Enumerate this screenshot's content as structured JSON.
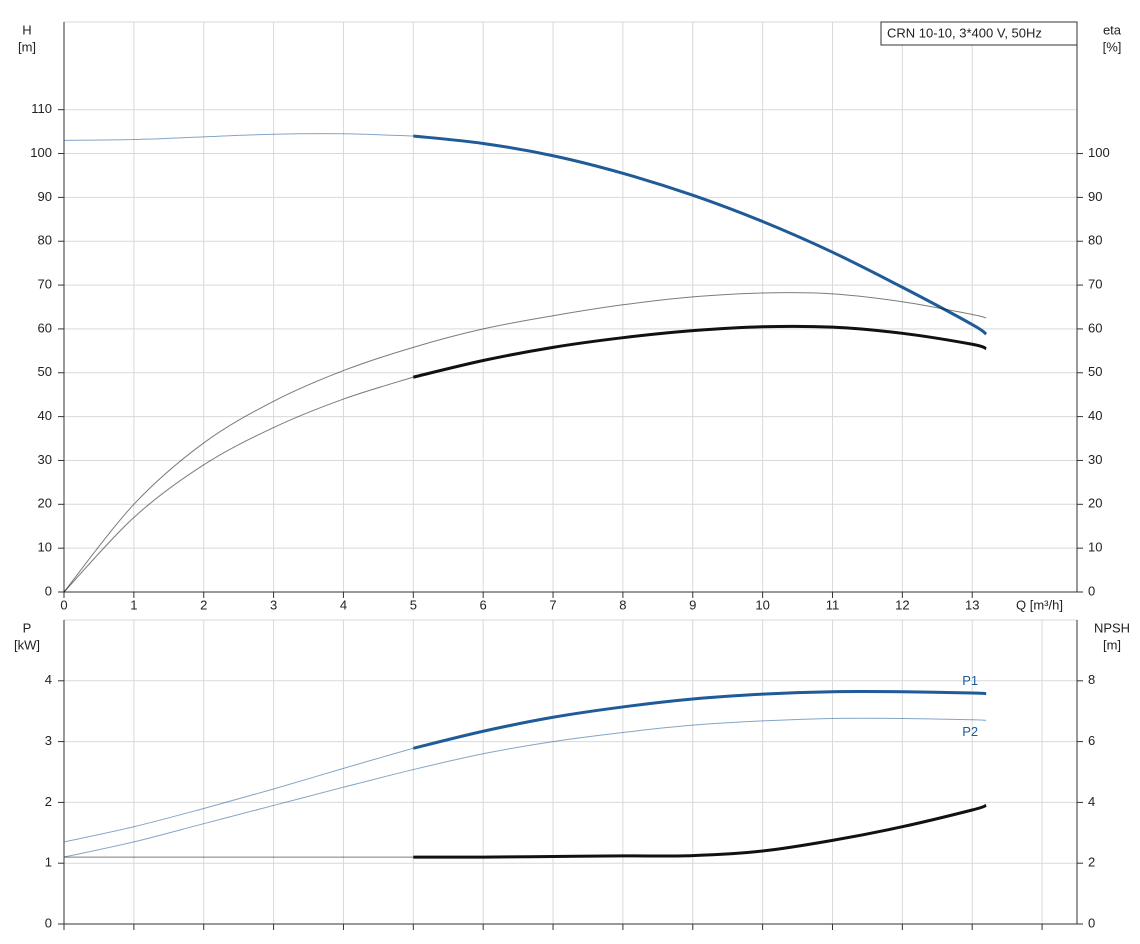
{
  "chart_data": [
    {
      "type": "line",
      "legend_text": "CRN 10-10, 3*400 V, 50Hz",
      "ylabel": "H",
      "yunit": "[m]",
      "y2label": "eta",
      "y2unit": "[%]",
      "xlabel": "Q [m³/h]",
      "x": [
        0,
        1,
        2,
        3,
        4,
        5,
        6,
        7,
        8,
        9,
        10,
        11,
        12,
        13,
        13.2
      ],
      "xlim": [
        0,
        14.5
      ],
      "xticks": [
        0,
        1,
        2,
        3,
        4,
        5,
        6,
        7,
        8,
        9,
        10,
        11,
        12,
        13
      ],
      "ylim": [
        0,
        130
      ],
      "yticks": [
        0,
        10,
        20,
        30,
        40,
        50,
        60,
        70,
        80,
        90,
        100,
        110
      ],
      "y2lim": [
        0,
        130
      ],
      "y2ticks": [
        0,
        10,
        20,
        30,
        40,
        50,
        60,
        70,
        80,
        90,
        100
      ],
      "grid": true,
      "series": [
        {
          "color": "#1f5b99",
          "bold_from": 5,
          "values": [
            103,
            103.2,
            103.8,
            104.4,
            104.5,
            104,
            102.3,
            99.5,
            95.5,
            90.5,
            84.5,
            77.5,
            69.5,
            61,
            58.8
          ]
        },
        {
          "color": "#111111",
          "bold_from": 5,
          "axis": "y2",
          "values": [
            0,
            17,
            29,
            37.5,
            44,
            49,
            52.8,
            55.8,
            58,
            59.6,
            60.5,
            60.4,
            59,
            56.5,
            55.5
          ]
        },
        {
          "color": "#111111",
          "bold_from": 13.2,
          "axis": "y2",
          "values": [
            0,
            20,
            34,
            43.5,
            50.5,
            55.8,
            60,
            63,
            65.5,
            67.3,
            68.2,
            68,
            66.2,
            63.3,
            62.5
          ]
        }
      ]
    },
    {
      "type": "line",
      "ylabel": "P",
      "yunit": "[kW]",
      "y2label": "NPSH",
      "y2unit": "[m]",
      "x": [
        0,
        1,
        2,
        3,
        4,
        5,
        6,
        7,
        8,
        9,
        10,
        11,
        12,
        13,
        13.2
      ],
      "xlim": [
        0,
        14.5
      ],
      "xgrid": [
        0,
        1,
        2,
        3,
        4,
        5,
        6,
        7,
        8,
        9,
        10,
        11,
        12,
        13,
        14
      ],
      "ylim": [
        0,
        5
      ],
      "yticks": [
        0,
        1,
        2,
        3,
        4
      ],
      "y2lim": [
        0,
        10
      ],
      "y2ticks": [
        0,
        2,
        4,
        6,
        8
      ],
      "grid": true,
      "series": [
        {
          "name": "P1",
          "color": "#1f5b99",
          "bold_from": 5,
          "values": [
            1.35,
            1.6,
            1.9,
            2.22,
            2.56,
            2.89,
            3.17,
            3.4,
            3.57,
            3.7,
            3.78,
            3.82,
            3.82,
            3.8,
            3.79
          ]
        },
        {
          "name": "P2",
          "color": "#1f5b99",
          "bold_from": 13.2,
          "values": [
            1.1,
            1.35,
            1.65,
            1.95,
            2.25,
            2.54,
            2.8,
            3.0,
            3.15,
            3.27,
            3.34,
            3.38,
            3.38,
            3.36,
            3.35
          ]
        },
        {
          "color": "#111111",
          "bold_from": 5,
          "axis": "y2",
          "values": [
            2.2,
            2.2,
            2.2,
            2.2,
            2.2,
            2.2,
            2.2,
            2.22,
            2.24,
            2.25,
            2.4,
            2.75,
            3.2,
            3.75,
            3.9
          ]
        }
      ]
    }
  ]
}
